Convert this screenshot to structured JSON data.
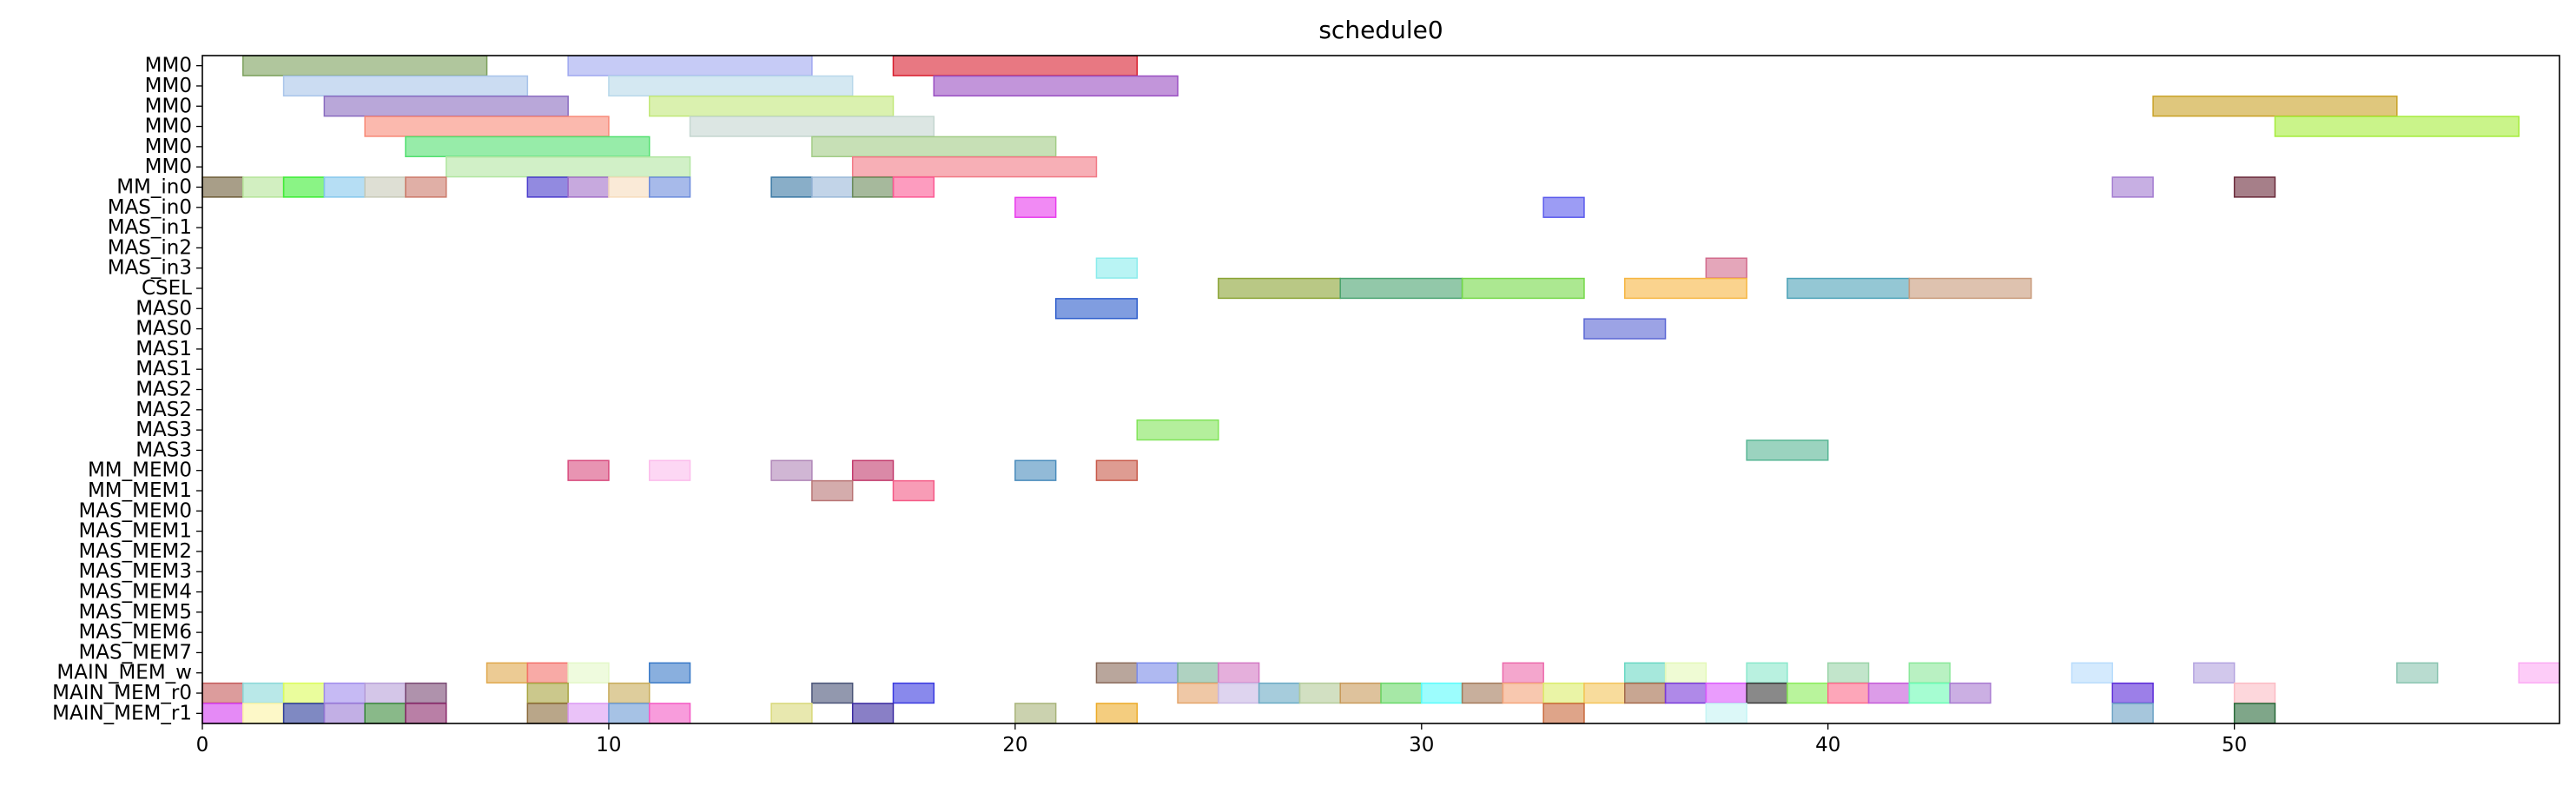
{
  "chart_data": {
    "type": "gantt",
    "title": "schedule0",
    "xlabel": "",
    "ylabel": "",
    "xlim": [
      0,
      58
    ],
    "xticks": [
      0,
      10,
      20,
      30,
      40,
      50
    ],
    "grid": false,
    "legend": "none",
    "rows": [
      "MM0",
      "MM0",
      "MM0",
      "MM0",
      "MM0",
      "MM0",
      "MM_in0",
      "MAS_in0",
      "MAS_in1",
      "MAS_in2",
      "MAS_in3",
      "CSEL",
      "MAS0",
      "MAS0",
      "MAS1",
      "MAS1",
      "MAS2",
      "MAS2",
      "MAS3",
      "MAS3",
      "MM_MEM0",
      "MM_MEM1",
      "MAS_MEM0",
      "MAS_MEM1",
      "MAS_MEM2",
      "MAS_MEM3",
      "MAS_MEM4",
      "MAS_MEM5",
      "MAS_MEM6",
      "MAS_MEM7",
      "MAIN_MEM_w",
      "MAIN_MEM_r0",
      "MAIN_MEM_r1"
    ],
    "bars": [
      {
        "row": 0,
        "start": 1,
        "end": 7,
        "color": "#7ba05b"
      },
      {
        "row": 0,
        "start": 9,
        "end": 15,
        "color": "#a0a8f0"
      },
      {
        "row": 0,
        "start": 17,
        "end": 23,
        "color": "#d91e2e"
      },
      {
        "row": 1,
        "start": 2,
        "end": 8,
        "color": "#a8c4ea"
      },
      {
        "row": 1,
        "start": 10,
        "end": 16,
        "color": "#b8d8ea"
      },
      {
        "row": 1,
        "start": 18,
        "end": 24,
        "color": "#9a4fc2"
      },
      {
        "row": 2,
        "start": 3,
        "end": 9,
        "color": "#8a6cc0"
      },
      {
        "row": 2,
        "start": 11,
        "end": 17,
        "color": "#c2e87a"
      },
      {
        "row": 2,
        "start": 48,
        "end": 54,
        "color": "#c9a227"
      },
      {
        "row": 3,
        "start": 4,
        "end": 10,
        "color": "#f88a78"
      },
      {
        "row": 3,
        "start": 12,
        "end": 18,
        "color": "#c4d6d0"
      },
      {
        "row": 3,
        "start": 51,
        "end": 57,
        "color": "#a6ec3c"
      },
      {
        "row": 4,
        "start": 5,
        "end": 11,
        "color": "#52e070"
      },
      {
        "row": 4,
        "start": 15,
        "end": 21,
        "color": "#a2cc86"
      },
      {
        "row": 5,
        "start": 6,
        "end": 12,
        "color": "#b2e6a2"
      },
      {
        "row": 5,
        "start": 16,
        "end": 22,
        "color": "#f27a86"
      },
      {
        "row": 6,
        "start": 0,
        "end": 1,
        "color": "#6e5e38"
      },
      {
        "row": 6,
        "start": 1,
        "end": 2,
        "color": "#b4e498"
      },
      {
        "row": 6,
        "start": 2,
        "end": 3,
        "color": "#3cec34"
      },
      {
        "row": 6,
        "start": 3,
        "end": 4,
        "color": "#86c8ec"
      },
      {
        "row": 6,
        "start": 4,
        "end": 5,
        "color": "#c8cab8"
      },
      {
        "row": 6,
        "start": 5,
        "end": 6,
        "color": "#cc7a6a"
      },
      {
        "row": 6,
        "start": 8,
        "end": 9,
        "color": "#4a3ccc"
      },
      {
        "row": 6,
        "start": 9,
        "end": 10,
        "color": "#a270c8"
      },
      {
        "row": 6,
        "start": 10,
        "end": 11,
        "color": "#f6dcbc"
      },
      {
        "row": 6,
        "start": 11,
        "end": 12,
        "color": "#6c8cdc"
      },
      {
        "row": 6,
        "start": 14,
        "end": 15,
        "color": "#3a78a4"
      },
      {
        "row": 6,
        "start": 15,
        "end": 16,
        "color": "#9ab8d8"
      },
      {
        "row": 6,
        "start": 16,
        "end": 17,
        "color": "#6a8a5a"
      },
      {
        "row": 6,
        "start": 17,
        "end": 18,
        "color": "#fc5a94"
      },
      {
        "row": 6,
        "start": 47,
        "end": 48,
        "color": "#a27ad0"
      },
      {
        "row": 6,
        "start": 50,
        "end": 51,
        "color": "#6a2a3a"
      },
      {
        "row": 7,
        "start": 20,
        "end": 21,
        "color": "#e83cec"
      },
      {
        "row": 7,
        "start": 33,
        "end": 34,
        "color": "#5a5aec"
      },
      {
        "row": 10,
        "start": 22,
        "end": 23,
        "color": "#8aecec"
      },
      {
        "row": 10,
        "start": 37,
        "end": 38,
        "color": "#d26a8c"
      },
      {
        "row": 11,
        "start": 25,
        "end": 28,
        "color": "#8aa434"
      },
      {
        "row": 11,
        "start": 28,
        "end": 31,
        "color": "#4aa470"
      },
      {
        "row": 11,
        "start": 31,
        "end": 34,
        "color": "#74d848"
      },
      {
        "row": 11,
        "start": 35,
        "end": 38,
        "color": "#f6b642"
      },
      {
        "row": 11,
        "start": 39,
        "end": 42,
        "color": "#4ca2b8"
      },
      {
        "row": 11,
        "start": 42,
        "end": 45,
        "color": "#c89a7a"
      },
      {
        "row": 12,
        "start": 21,
        "end": 23,
        "color": "#2c5ccc"
      },
      {
        "row": 13,
        "start": 34,
        "end": 36,
        "color": "#5a66d4"
      },
      {
        "row": 18,
        "start": 23,
        "end": 25,
        "color": "#82e45a"
      },
      {
        "row": 19,
        "start": 38,
        "end": 40,
        "color": "#58b694"
      },
      {
        "row": 20,
        "start": 9,
        "end": 10,
        "color": "#d84c7e"
      },
      {
        "row": 20,
        "start": 11,
        "end": 12,
        "color": "#fcbcec"
      },
      {
        "row": 20,
        "start": 14,
        "end": 15,
        "color": "#b086b8"
      },
      {
        "row": 20,
        "start": 16,
        "end": 17,
        "color": "#c23a6c"
      },
      {
        "row": 20,
        "start": 20,
        "end": 21,
        "color": "#4a8cbc"
      },
      {
        "row": 20,
        "start": 22,
        "end": 23,
        "color": "#c85a4a"
      },
      {
        "row": 21,
        "start": 15,
        "end": 16,
        "color": "#b87474"
      },
      {
        "row": 21,
        "start": 17,
        "end": 18,
        "color": "#f45a86"
      },
      {
        "row": 30,
        "start": 7,
        "end": 8,
        "color": "#e0a84c"
      },
      {
        "row": 30,
        "start": 8,
        "end": 9,
        "color": "#f4726a"
      },
      {
        "row": 30,
        "start": 9,
        "end": 10,
        "color": "#e4f8c8"
      },
      {
        "row": 30,
        "start": 11,
        "end": 12,
        "color": "#3a7ac8"
      },
      {
        "row": 30,
        "start": 22,
        "end": 23,
        "color": "#8a6a5a"
      },
      {
        "row": 30,
        "start": 23,
        "end": 24,
        "color": "#7a8ae8"
      },
      {
        "row": 30,
        "start": 24,
        "end": 25,
        "color": "#7ab498"
      },
      {
        "row": 30,
        "start": 25,
        "end": 26,
        "color": "#d47ac4"
      },
      {
        "row": 30,
        "start": 32,
        "end": 33,
        "color": "#ec6aac"
      },
      {
        "row": 30,
        "start": 35,
        "end": 36,
        "color": "#6ad8c4"
      },
      {
        "row": 30,
        "start": 36,
        "end": 37,
        "color": "#e4f8b8"
      },
      {
        "row": 30,
        "start": 38,
        "end": 39,
        "color": "#8ae8cc"
      },
      {
        "row": 30,
        "start": 40,
        "end": 41,
        "color": "#9ad4a8"
      },
      {
        "row": 30,
        "start": 42,
        "end": 43,
        "color": "#8ae89a"
      },
      {
        "row": 30,
        "start": 46,
        "end": 47,
        "color": "#b8dcfc"
      },
      {
        "row": 30,
        "start": 49,
        "end": 50,
        "color": "#b4a4e0"
      },
      {
        "row": 30,
        "start": 54,
        "end": 55,
        "color": "#8ac4b0"
      },
      {
        "row": 30,
        "start": 57,
        "end": 58,
        "color": "#fcaaf4"
      },
      {
        "row": 31,
        "start": 0,
        "end": 1,
        "color": "#c45a5a"
      },
      {
        "row": 31,
        "start": 1,
        "end": 2,
        "color": "#8ad8d8"
      },
      {
        "row": 31,
        "start": 2,
        "end": 3,
        "color": "#dcfc5a"
      },
      {
        "row": 31,
        "start": 3,
        "end": 4,
        "color": "#a08cec"
      },
      {
        "row": 31,
        "start": 4,
        "end": 5,
        "color": "#b8a0d8"
      },
      {
        "row": 31,
        "start": 5,
        "end": 6,
        "color": "#7a4a74"
      },
      {
        "row": 31,
        "start": 8,
        "end": 9,
        "color": "#a8a440"
      },
      {
        "row": 31,
        "start": 10,
        "end": 11,
        "color": "#c8ac5a"
      },
      {
        "row": 31,
        "start": 15,
        "end": 16,
        "color": "#4a5478"
      },
      {
        "row": 31,
        "start": 17,
        "end": 18,
        "color": "#3a3ae0"
      },
      {
        "row": 31,
        "start": 24,
        "end": 25,
        "color": "#e4a46a"
      },
      {
        "row": 31,
        "start": 25,
        "end": 26,
        "color": "#c8b8e4"
      },
      {
        "row": 31,
        "start": 26,
        "end": 27,
        "color": "#6aaac4"
      },
      {
        "row": 31,
        "start": 27,
        "end": 28,
        "color": "#b4cc9a"
      },
      {
        "row": 31,
        "start": 28,
        "end": 29,
        "color": "#c89a5a"
      },
      {
        "row": 31,
        "start": 29,
        "end": 30,
        "color": "#6ad86a"
      },
      {
        "row": 31,
        "start": 30,
        "end": 31,
        "color": "#5afcfc"
      },
      {
        "row": 31,
        "start": 31,
        "end": 32,
        "color": "#a47a5a"
      },
      {
        "row": 31,
        "start": 32,
        "end": 33,
        "color": "#f4a47a"
      },
      {
        "row": 31,
        "start": 33,
        "end": 34,
        "color": "#dcec6a"
      },
      {
        "row": 31,
        "start": 34,
        "end": 35,
        "color": "#f4c45a"
      },
      {
        "row": 31,
        "start": 35,
        "end": 36,
        "color": "#a46a4a"
      },
      {
        "row": 31,
        "start": 36,
        "end": 37,
        "color": "#7a3ad8"
      },
      {
        "row": 31,
        "start": 37,
        "end": 38,
        "color": "#dc5afc"
      },
      {
        "row": 31,
        "start": 38,
        "end": 39,
        "color": "#3a3a3a"
      },
      {
        "row": 31,
        "start": 39,
        "end": 40,
        "color": "#8aec5a"
      },
      {
        "row": 31,
        "start": 40,
        "end": 41,
        "color": "#fc6a8a"
      },
      {
        "row": 31,
        "start": 41,
        "end": 42,
        "color": "#c45ad8"
      },
      {
        "row": 31,
        "start": 42,
        "end": 43,
        "color": "#6afcb4"
      },
      {
        "row": 31,
        "start": 43,
        "end": 44,
        "color": "#a87ad0"
      },
      {
        "row": 31,
        "start": 47,
        "end": 48,
        "color": "#5a2ad8"
      },
      {
        "row": 31,
        "start": 50,
        "end": 51,
        "color": "#fcbcc4"
      },
      {
        "row": 32,
        "start": 0,
        "end": 1,
        "color": "#d43cf0"
      },
      {
        "row": 32,
        "start": 1,
        "end": 2,
        "color": "#fcf4a4"
      },
      {
        "row": 32,
        "start": 2,
        "end": 3,
        "color": "#2a3a9a"
      },
      {
        "row": 32,
        "start": 3,
        "end": 4,
        "color": "#9a7ad4"
      },
      {
        "row": 32,
        "start": 4,
        "end": 5,
        "color": "#3a8a3a"
      },
      {
        "row": 32,
        "start": 5,
        "end": 6,
        "color": "#8a2a6a"
      },
      {
        "row": 32,
        "start": 8,
        "end": 9,
        "color": "#8a6a3a"
      },
      {
        "row": 32,
        "start": 9,
        "end": 10,
        "color": "#dc9af4"
      },
      {
        "row": 32,
        "start": 10,
        "end": 11,
        "color": "#6a9ad4"
      },
      {
        "row": 32,
        "start": 11,
        "end": 12,
        "color": "#f45ac4"
      },
      {
        "row": 32,
        "start": 14,
        "end": 15,
        "color": "#d8d87a"
      },
      {
        "row": 32,
        "start": 16,
        "end": 17,
        "color": "#3a2aa0"
      },
      {
        "row": 32,
        "start": 20,
        "end": 21,
        "color": "#a8b47a"
      },
      {
        "row": 32,
        "start": 22,
        "end": 23,
        "color": "#ecac2a"
      },
      {
        "row": 32,
        "start": 33,
        "end": 34,
        "color": "#c8683a"
      },
      {
        "row": 32,
        "start": 37,
        "end": 38,
        "color": "#c4f4f4"
      },
      {
        "row": 32,
        "start": 47,
        "end": 48,
        "color": "#6aa0c4"
      },
      {
        "row": 32,
        "start": 50,
        "end": 51,
        "color": "#2a6a3a"
      }
    ]
  }
}
